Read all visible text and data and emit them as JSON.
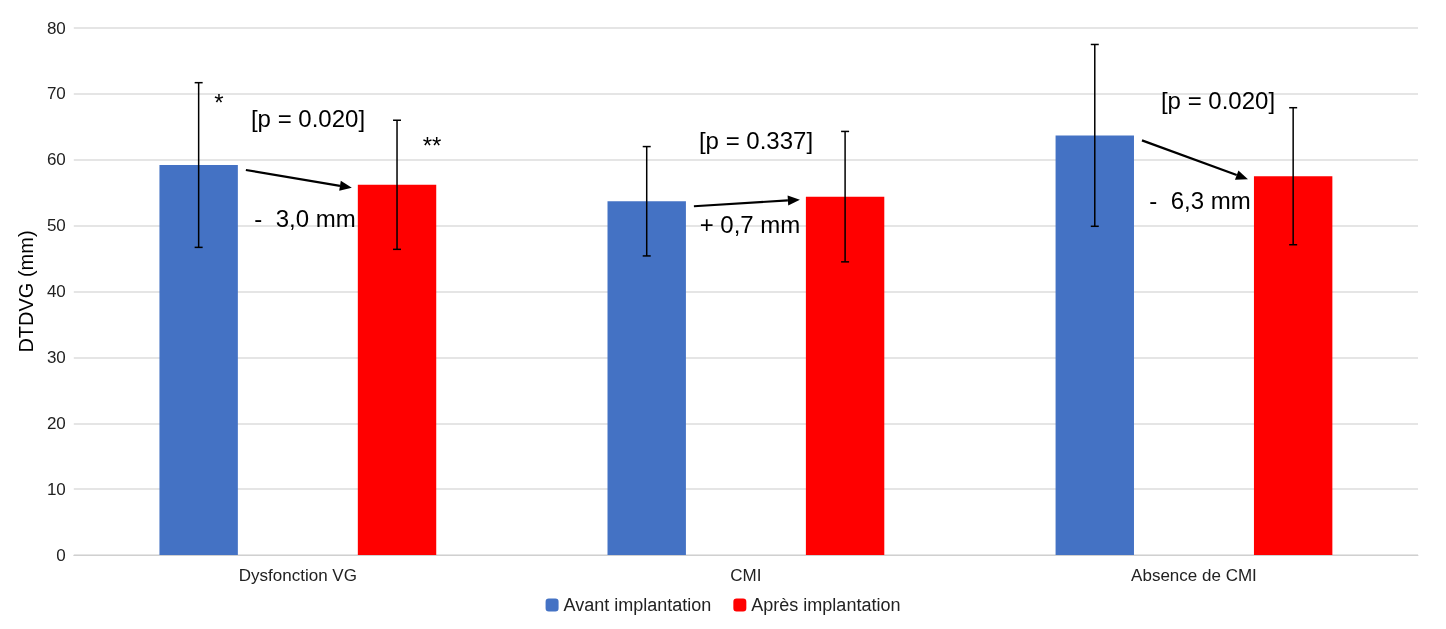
{
  "chart_data": {
    "type": "bar",
    "ylabel": "DTDVG (mm)",
    "categories": [
      "Dysfonction VG",
      "CMI",
      "Absence de CMI"
    ],
    "series": [
      {
        "name": "Avant implantation",
        "color": "#4472c4",
        "values": [
          59.2,
          53.7,
          63.7
        ],
        "errors": [
          12.5,
          8.3,
          13.8
        ]
      },
      {
        "name": "Après implantation",
        "color": "#ff0000",
        "values": [
          56.2,
          54.4,
          57.5
        ],
        "errors": [
          9.8,
          9.9,
          10.4
        ]
      }
    ],
    "ylim": [
      0,
      80
    ],
    "yticks": [
      0,
      10,
      20,
      30,
      40,
      50,
      60,
      70,
      80
    ],
    "grid": "y",
    "legend": "bottom",
    "annotations": [
      "*",
      "[p = 0.020]",
      "**",
      "-  3,0 mm",
      "[p = 0.337]",
      "+ 0,7 mm",
      "[p = 0.020]",
      "-  6,3 mm"
    ]
  }
}
